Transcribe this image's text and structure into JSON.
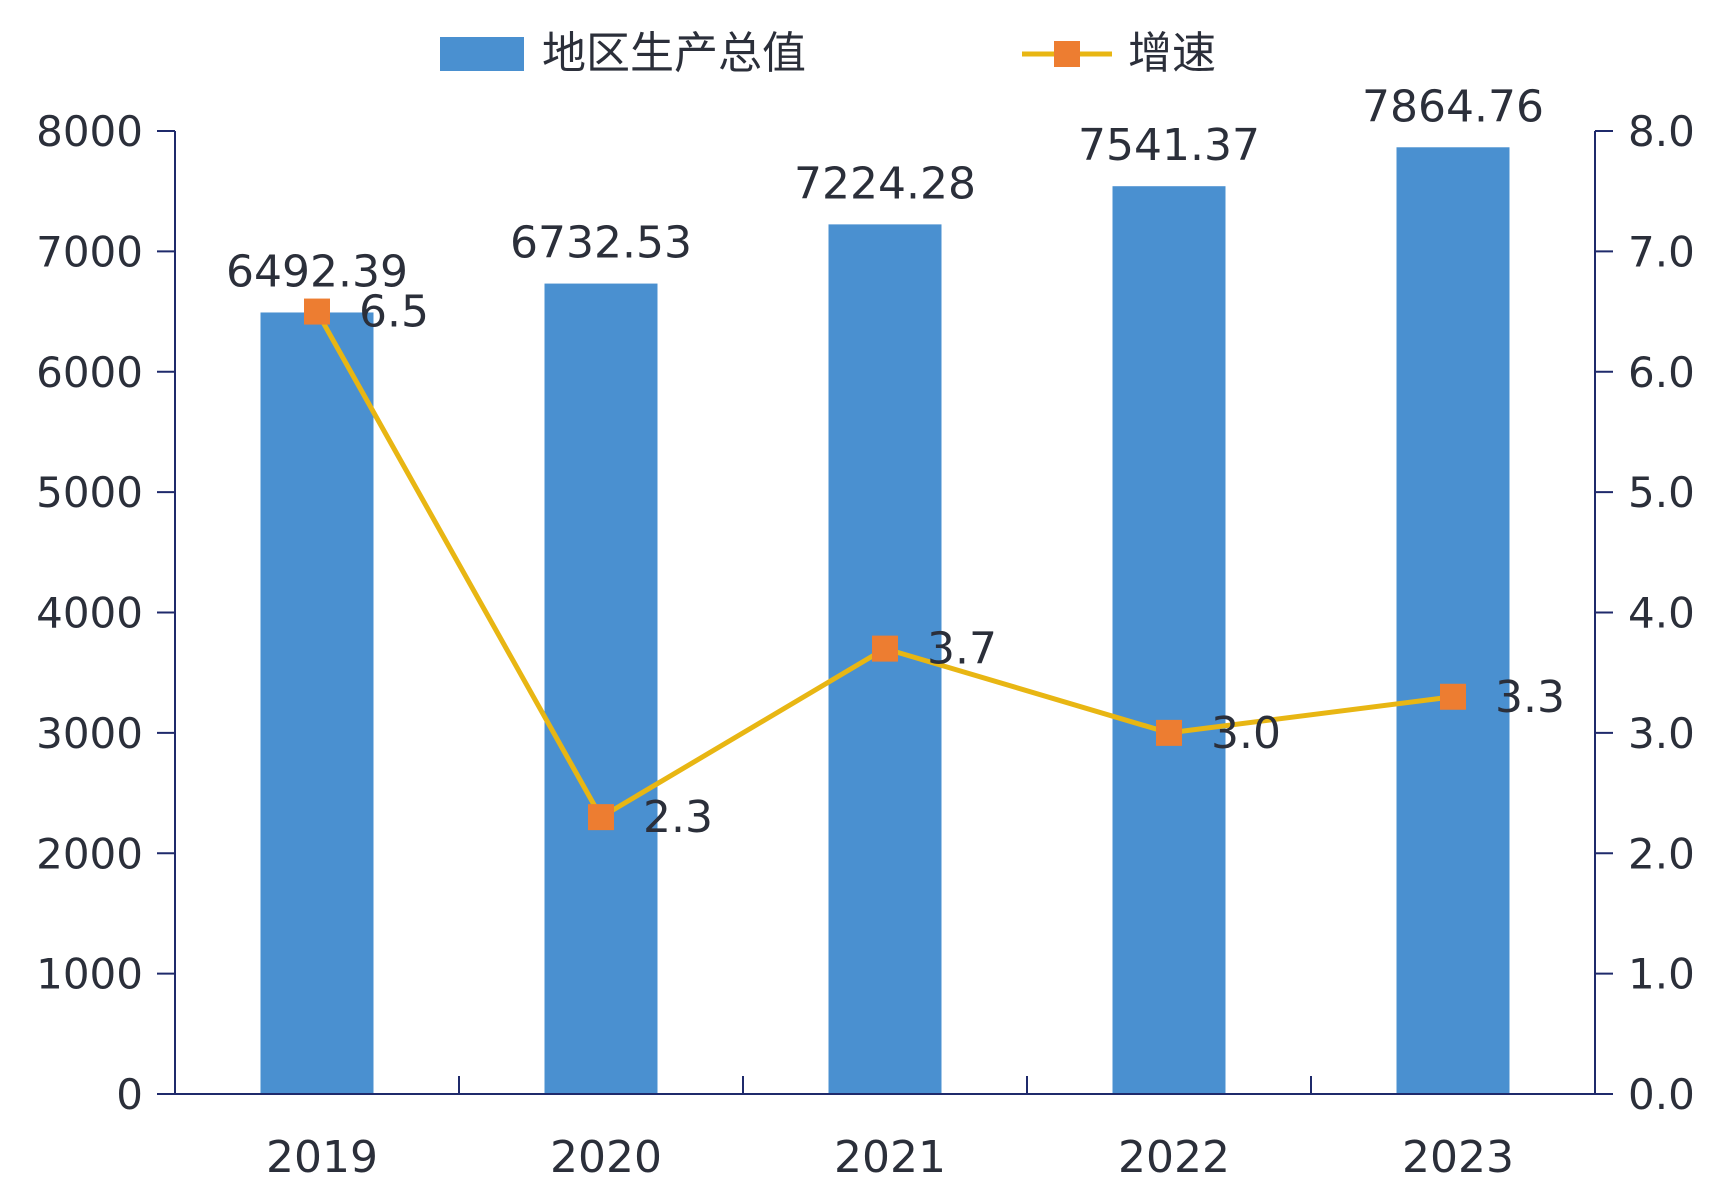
{
  "chart_data": {
    "type": "bar",
    "categories": [
      "2019",
      "2020",
      "2021",
      "2022",
      "2023"
    ],
    "series": [
      {
        "name": "地区生产总值",
        "type": "bar",
        "axis": "left",
        "values": [
          6492.39,
          6732.53,
          7224.28,
          7541.37,
          7864.76
        ],
        "labels": [
          "6492.39",
          "6732.53",
          "7224.28",
          "7541.37",
          "7864.76"
        ],
        "color": "#4a90d0"
      },
      {
        "name": "增速",
        "type": "line",
        "axis": "right",
        "values": [
          6.5,
          2.3,
          3.7,
          3.0,
          3.3
        ],
        "labels": [
          "6.5",
          "2.3",
          "3.7",
          "3.0",
          "3.3"
        ],
        "color": "#e8b613",
        "marker_color": "#ed7d31"
      }
    ],
    "y_left": {
      "range": [
        0,
        8000
      ],
      "ticks": [
        "0",
        "1000",
        "2000",
        "3000",
        "4000",
        "5000",
        "6000",
        "7000",
        "8000"
      ]
    },
    "y_right": {
      "range": [
        0,
        8
      ],
      "ticks": [
        "0.0",
        "1.0",
        "2.0",
        "3.0",
        "4.0",
        "5.0",
        "6.0",
        "7.0",
        "8.0"
      ]
    },
    "title": "",
    "xlabel": "",
    "ylabel": "",
    "grid": false,
    "legend": "top-center",
    "axis_color": "#1f2a6b"
  }
}
